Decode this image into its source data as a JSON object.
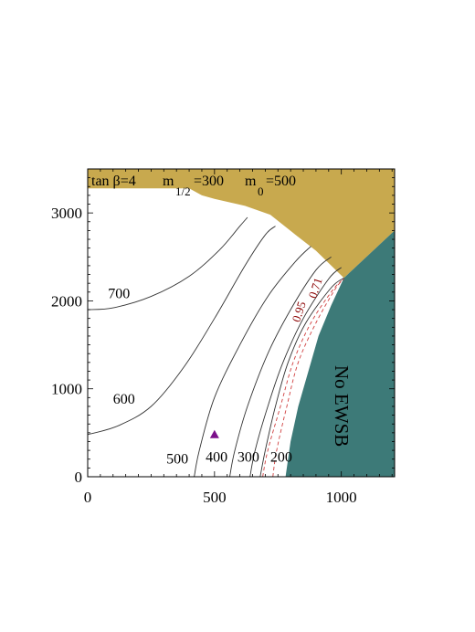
{
  "chart_data": {
    "type": "contour",
    "xlim": [
      0,
      1210
    ],
    "ylim": [
      0,
      3500
    ],
    "x_ticks": [
      0,
      500,
      1000
    ],
    "y_ticks": [
      0,
      1000,
      2000,
      3000
    ],
    "title_parts": {
      "tanb": "tan β=4",
      "m12_base": "m",
      "m12_sub": "1/2",
      "m12_val": "=300",
      "m0_base": "m",
      "m0_sub": "0",
      "m0_val": "=500"
    },
    "colors": {
      "excluded_top": "#c8a94e",
      "no_ewsb": "#3d7a78",
      "contour": "#333333",
      "dashed": "#d04040",
      "marker": "#7b0f8a"
    },
    "excluded_top_polygon": [
      [
        0,
        3500
      ],
      [
        1210,
        3500
      ],
      [
        1210,
        2800
      ],
      [
        1010,
        2260
      ],
      [
        900,
        2570
      ],
      [
        820,
        2750
      ],
      [
        720,
        2980
      ],
      [
        620,
        3080
      ],
      [
        500,
        3160
      ],
      [
        450,
        3200
      ],
      [
        400,
        3280
      ],
      [
        0,
        3280
      ]
    ],
    "no_ewsb_polygon": [
      [
        1010,
        2260
      ],
      [
        1210,
        2800
      ],
      [
        1210,
        0
      ],
      [
        780,
        0
      ],
      [
        800,
        400
      ],
      [
        830,
        800
      ],
      [
        870,
        1200
      ],
      [
        910,
        1600
      ],
      [
        960,
        1950
      ]
    ],
    "contours": [
      {
        "label": "700",
        "points": [
          [
            0,
            1900
          ],
          [
            100,
            1920
          ],
          [
            250,
            2050
          ],
          [
            400,
            2280
          ],
          [
            520,
            2580
          ],
          [
            600,
            2850
          ],
          [
            630,
            2950
          ]
        ]
      },
      {
        "label": "600",
        "points": [
          [
            0,
            480
          ],
          [
            120,
            580
          ],
          [
            250,
            800
          ],
          [
            380,
            1250
          ],
          [
            500,
            1800
          ],
          [
            620,
            2400
          ],
          [
            700,
            2750
          ],
          [
            740,
            2850
          ]
        ]
      },
      {
        "label": "500",
        "points": [
          [
            420,
            0
          ],
          [
            440,
            300
          ],
          [
            500,
            900
          ],
          [
            600,
            1500
          ],
          [
            710,
            2050
          ],
          [
            820,
            2450
          ],
          [
            880,
            2620
          ]
        ]
      },
      {
        "label": "400",
        "points": [
          [
            560,
            0
          ],
          [
            580,
            300
          ],
          [
            630,
            800
          ],
          [
            710,
            1400
          ],
          [
            800,
            1900
          ],
          [
            900,
            2350
          ],
          [
            960,
            2500
          ]
        ]
      },
      {
        "label": "300",
        "points": [
          [
            640,
            0
          ],
          [
            660,
            300
          ],
          [
            710,
            800
          ],
          [
            770,
            1300
          ],
          [
            850,
            1800
          ],
          [
            950,
            2250
          ],
          [
            1000,
            2380
          ]
        ]
      },
      {
        "label": "200",
        "points": [
          [
            680,
            0
          ],
          [
            700,
            300
          ],
          [
            740,
            800
          ],
          [
            790,
            1300
          ],
          [
            860,
            1750
          ],
          [
            960,
            2150
          ],
          [
            1010,
            2260
          ]
        ]
      }
    ],
    "dashed_contours": [
      {
        "label": "0.95",
        "points": [
          [
            690,
            0
          ],
          [
            710,
            300
          ],
          [
            760,
            800
          ],
          [
            810,
            1300
          ],
          [
            880,
            1750
          ],
          [
            960,
            2100
          ],
          [
            1000,
            2230
          ]
        ]
      },
      {
        "label": "0.71",
        "points": [
          [
            730,
            0
          ],
          [
            745,
            300
          ],
          [
            785,
            800
          ],
          [
            830,
            1300
          ],
          [
            900,
            1750
          ],
          [
            975,
            2130
          ],
          [
            1010,
            2250
          ]
        ]
      }
    ],
    "marker": {
      "x": 500,
      "y": 480
    },
    "contour_labels": [
      {
        "text": "700",
        "x": 80,
        "y": 2030
      },
      {
        "text": "600",
        "x": 100,
        "y": 830
      },
      {
        "text": "500",
        "x": 310,
        "y": 150
      },
      {
        "text": "400",
        "x": 465,
        "y": 170
      },
      {
        "text": "300",
        "x": 590,
        "y": 170
      },
      {
        "text": "200",
        "x": 720,
        "y": 170
      },
      {
        "text": "0.95",
        "x": 835,
        "y": 1750,
        "rot": -72
      },
      {
        "text": "0.71",
        "x": 900,
        "y": 2020,
        "rot": -72
      }
    ],
    "region_label": "No EWSB"
  }
}
